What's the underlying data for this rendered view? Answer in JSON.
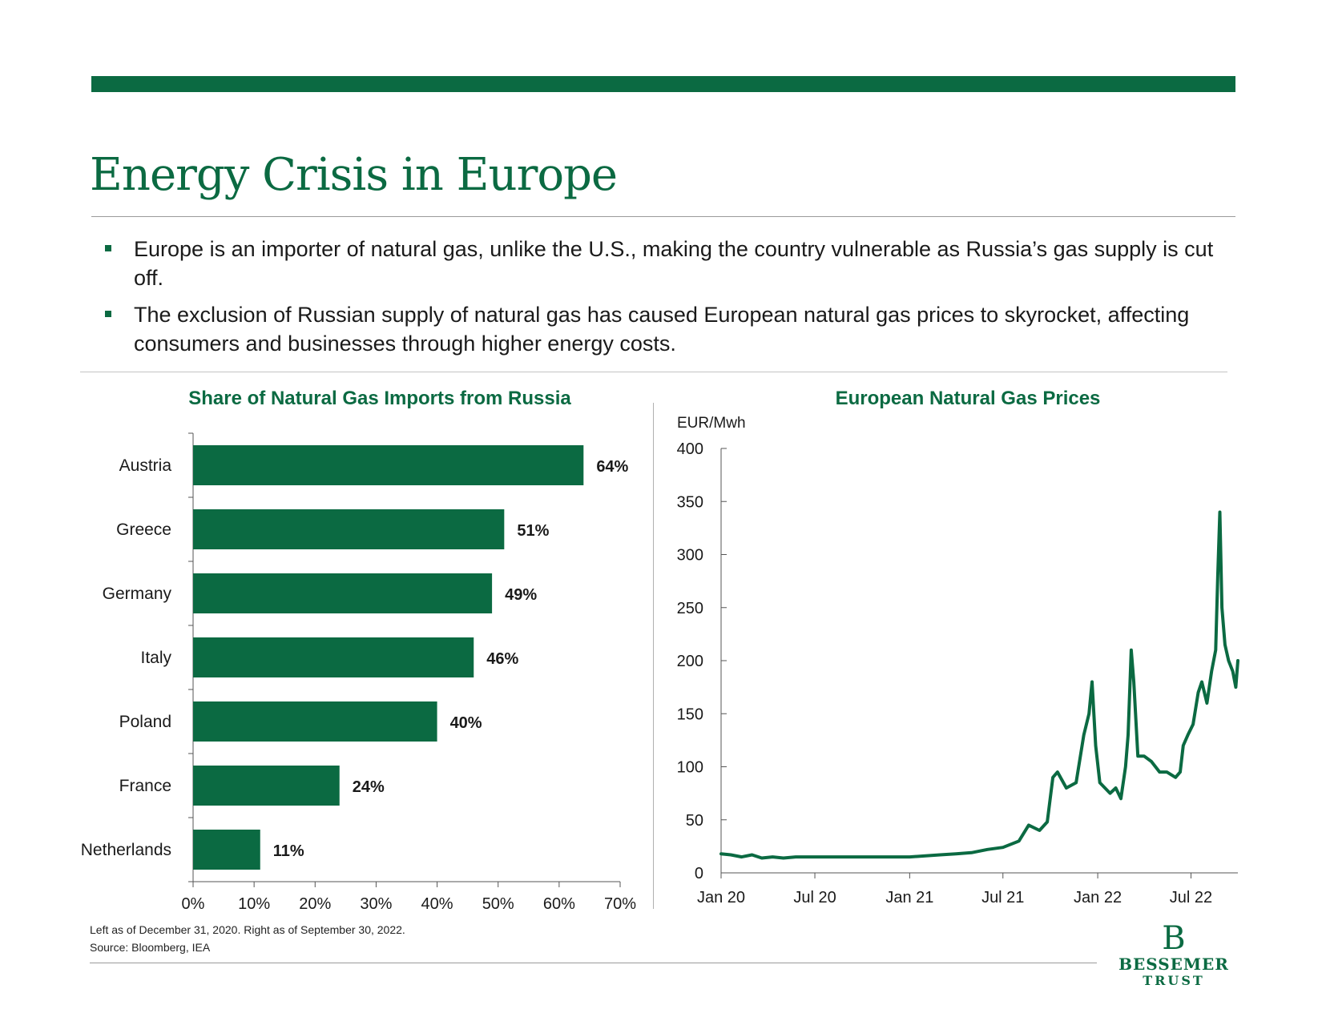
{
  "title": "Energy Crisis in Europe",
  "bullets": [
    "Europe is an importer of natural gas, unlike the U.S., making the country vulnerable as Russia’s gas supply is cut off.",
    "The exclusion of Russian supply of natural gas has caused European natural gas prices to skyrocket, affecting consumers and businesses through higher energy costs."
  ],
  "colors": {
    "brand_green": "#0b6a42"
  },
  "chart_data": [
    {
      "type": "bar",
      "orientation": "horizontal",
      "title": "Share of Natural Gas Imports from Russia",
      "categories": [
        "Austria",
        "Greece",
        "Germany",
        "Italy",
        "Poland",
        "France",
        "Netherlands"
      ],
      "values": [
        64,
        51,
        49,
        46,
        40,
        24,
        11
      ],
      "data_labels": [
        "64%",
        "51%",
        "49%",
        "46%",
        "40%",
        "24%",
        "11%"
      ],
      "xlim": [
        0,
        70
      ],
      "x_ticks": [
        "0%",
        "10%",
        "20%",
        "30%",
        "40%",
        "50%",
        "60%",
        "70%"
      ],
      "grid": false
    },
    {
      "type": "line",
      "title": "European Natural Gas Prices",
      "ylabel": "EUR/Mwh",
      "ylim": [
        0,
        400
      ],
      "y_ticks": [
        0,
        50,
        100,
        150,
        200,
        250,
        300,
        350,
        400
      ],
      "x_ticks": [
        "Jan 20",
        "Jul 20",
        "Jan 21",
        "Jul 21",
        "Jan 22",
        "Jul 22"
      ],
      "x_tick_dates": [
        "2020-01-01",
        "2020-07-01",
        "2021-01-01",
        "2021-07-01",
        "2022-01-01",
        "2022-07-01"
      ],
      "xlim": [
        "2020-01-01",
        "2022-09-30"
      ],
      "grid": false,
      "series": [
        {
          "x": [
            "2020-01-01",
            "2020-01-20",
            "2020-02-10",
            "2020-03-01",
            "2020-03-20",
            "2020-04-10",
            "2020-05-01",
            "2020-05-25",
            "2020-06-15",
            "2020-07-01",
            "2020-08-01",
            "2020-09-01",
            "2020-10-01",
            "2020-11-01",
            "2020-12-01",
            "2021-01-01",
            "2021-02-01",
            "2021-03-01",
            "2021-04-01",
            "2021-05-01",
            "2021-06-01",
            "2021-07-01",
            "2021-08-01",
            "2021-08-20",
            "2021-09-10",
            "2021-09-25",
            "2021-10-06",
            "2021-10-15",
            "2021-11-01",
            "2021-11-20",
            "2021-12-05",
            "2021-12-15",
            "2021-12-21",
            "2021-12-28",
            "2022-01-05",
            "2022-01-15",
            "2022-01-25",
            "2022-02-05",
            "2022-02-15",
            "2022-02-24",
            "2022-03-01",
            "2022-03-07",
            "2022-03-12",
            "2022-03-20",
            "2022-04-01",
            "2022-04-15",
            "2022-05-01",
            "2022-05-15",
            "2022-06-01",
            "2022-06-10",
            "2022-06-16",
            "2022-06-25",
            "2022-07-05",
            "2022-07-15",
            "2022-07-22",
            "2022-08-01",
            "2022-08-10",
            "2022-08-18",
            "2022-08-22",
            "2022-08-26",
            "2022-08-30",
            "2022-09-05",
            "2022-09-12",
            "2022-09-20",
            "2022-09-26",
            "2022-09-30"
          ],
          "y": [
            18,
            17,
            15,
            17,
            14,
            15,
            14,
            15,
            15,
            15,
            15,
            15,
            15,
            15,
            15,
            15,
            16,
            17,
            18,
            19,
            22,
            24,
            30,
            45,
            40,
            48,
            90,
            95,
            80,
            85,
            130,
            150,
            180,
            120,
            85,
            80,
            75,
            80,
            70,
            100,
            130,
            210,
            180,
            110,
            110,
            105,
            95,
            95,
            90,
            95,
            120,
            130,
            140,
            170,
            180,
            160,
            190,
            210,
            280,
            340,
            250,
            215,
            200,
            190,
            175,
            200
          ]
        }
      ]
    }
  ],
  "footnotes": {
    "line1": "Left as of December 31, 2020. Right as of September 30, 2022.",
    "line2": "Source: Bloomberg, IEA"
  },
  "logo": {
    "mark": "B",
    "name": "BESSEMER",
    "sub": "TRUST"
  }
}
